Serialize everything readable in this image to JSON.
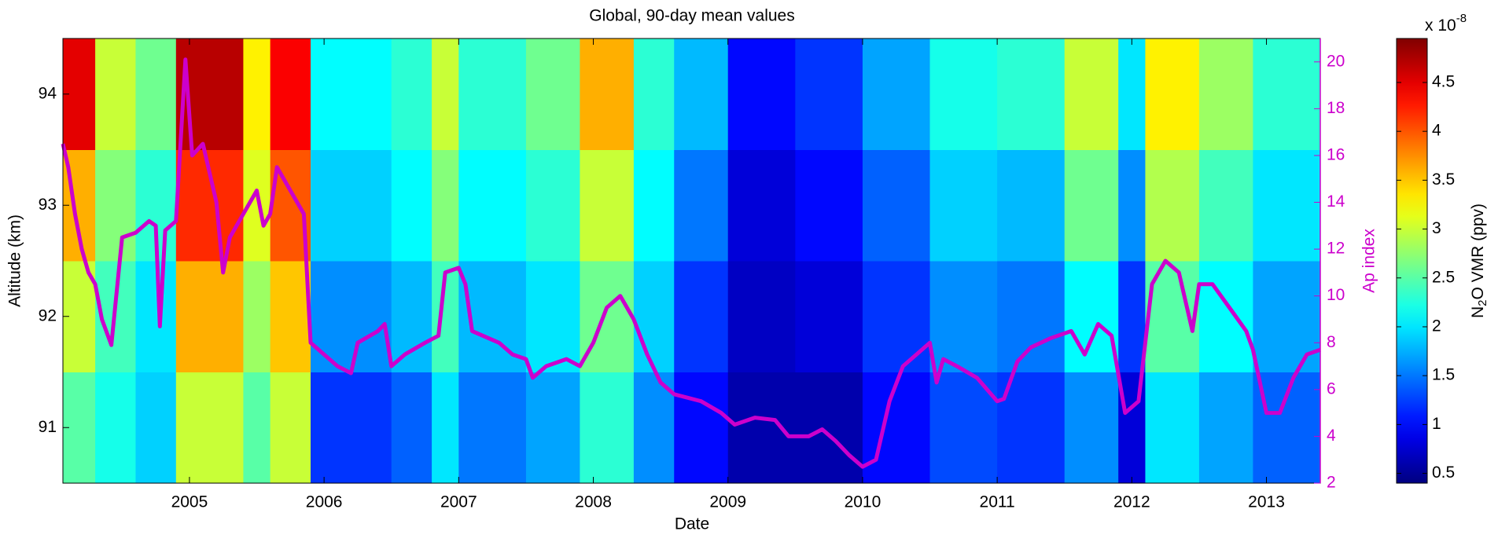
{
  "chart_data": {
    "type": "heatmap",
    "title": "Global, 90-day mean values",
    "x_label": "Date",
    "y_label": "Altitude (km)",
    "y2_label": "Ap index",
    "colorbar_label": {
      "pre": "N",
      "sub": "2",
      "post": "O VMR (ppv)"
    },
    "colorbar_scale": {
      "base": "x 10",
      "exp": "-8"
    },
    "colormap": "jet",
    "xlim": [
      2004.06,
      2013.4
    ],
    "xticks": [
      2005,
      2006,
      2007,
      2008,
      2009,
      2010,
      2011,
      2012,
      2013
    ],
    "ylim": [
      90.5,
      94.5
    ],
    "yticks": [
      91,
      92,
      93,
      94
    ],
    "y2lim": [
      2,
      21
    ],
    "y2ticks": [
      2,
      4,
      6,
      8,
      10,
      12,
      14,
      16,
      18,
      20
    ],
    "clim": [
      0.4,
      4.95
    ],
    "cticks": [
      0.5,
      1,
      1.5,
      2,
      2.5,
      3,
      3.5,
      4,
      4.5
    ],
    "x_bins": [
      2004.06,
      2004.3,
      2004.6,
      2004.9,
      2005.4,
      2005.6,
      2005.9,
      2006.5,
      2006.8,
      2007.0,
      2007.5,
      2007.9,
      2008.3,
      2008.6,
      2009.0,
      2009.5,
      2010.0,
      2010.5,
      2011.0,
      2011.5,
      2011.9,
      2012.1,
      2012.5,
      2012.9,
      2013.4
    ],
    "y_bins": [
      90.5,
      91.5,
      92.5,
      93.5,
      94.5
    ],
    "values": [
      [
        2.5,
        2.2,
        1.9,
        3.0,
        2.5,
        3.0,
        1.2,
        1.4,
        2.0,
        1.5,
        1.7,
        2.3,
        1.6,
        1.0,
        0.6,
        0.6,
        1.0,
        1.3,
        1.2,
        1.6,
        0.8,
        2.0,
        1.7,
        1.4
      ],
      [
        3.0,
        2.4,
        2.0,
        3.6,
        2.8,
        3.5,
        1.6,
        1.8,
        2.4,
        1.8,
        2.0,
        2.6,
        1.9,
        1.2,
        0.7,
        0.8,
        1.2,
        1.6,
        1.5,
        2.1,
        1.2,
        2.5,
        2.1,
        1.7
      ],
      [
        3.6,
        2.7,
        2.3,
        4.2,
        3.1,
        4.0,
        1.9,
        2.1,
        2.7,
        2.1,
        2.3,
        3.0,
        2.1,
        1.5,
        0.8,
        1.0,
        1.4,
        1.9,
        1.8,
        2.6,
        1.6,
        2.9,
        2.4,
        2.0
      ],
      [
        4.5,
        3.0,
        2.6,
        4.7,
        3.3,
        4.4,
        2.1,
        2.3,
        3.0,
        2.3,
        2.6,
        3.6,
        2.3,
        1.8,
        1.0,
        1.2,
        1.7,
        2.2,
        2.3,
        3.0,
        2.0,
        3.3,
        2.8,
        2.3
      ]
    ],
    "series": [
      {
        "type": "line",
        "axis": "y2",
        "color": "#cc00cc",
        "x": [
          2004.06,
          2004.1,
          2004.15,
          2004.2,
          2004.25,
          2004.3,
          2004.35,
          2004.42,
          2004.5,
          2004.6,
          2004.7,
          2004.75,
          2004.78,
          2004.82,
          2004.9,
          2004.97,
          2005.02,
          2005.1,
          2005.2,
          2005.25,
          2005.3,
          2005.4,
          2005.5,
          2005.55,
          2005.6,
          2005.65,
          2005.75,
          2005.85,
          2005.9,
          2006.0,
          2006.1,
          2006.2,
          2006.25,
          2006.4,
          2006.45,
          2006.5,
          2006.6,
          2006.75,
          2006.85,
          2006.9,
          2007.0,
          2007.05,
          2007.1,
          2007.3,
          2007.4,
          2007.5,
          2007.55,
          2007.65,
          2007.8,
          2007.9,
          2008.0,
          2008.1,
          2008.2,
          2008.3,
          2008.4,
          2008.5,
          2008.6,
          2008.8,
          2008.95,
          2009.05,
          2009.2,
          2009.35,
          2009.45,
          2009.6,
          2009.7,
          2009.8,
          2009.9,
          2010.0,
          2010.1,
          2010.2,
          2010.3,
          2010.4,
          2010.5,
          2010.55,
          2010.6,
          2010.7,
          2010.85,
          2011.0,
          2011.05,
          2011.15,
          2011.25,
          2011.4,
          2011.55,
          2011.65,
          2011.75,
          2011.85,
          2011.95,
          2012.05,
          2012.15,
          2012.25,
          2012.35,
          2012.45,
          2012.5,
          2012.6,
          2012.75,
          2012.85,
          2012.9,
          2013.0,
          2013.1,
          2013.2,
          2013.3,
          2013.4
        ],
        "values": [
          16.5,
          15.5,
          13.5,
          12,
          11,
          10.5,
          9,
          7.9,
          12.5,
          12.7,
          13.2,
          13,
          8.7,
          12.8,
          13.2,
          20.1,
          16,
          16.5,
          14,
          11,
          12.5,
          13.5,
          14.5,
          13,
          13.5,
          15.5,
          14.5,
          13.5,
          8,
          7.5,
          7,
          6.7,
          8,
          8.5,
          8.8,
          7,
          7.5,
          8,
          8.3,
          11,
          11.2,
          10.5,
          8.5,
          8,
          7.5,
          7.3,
          6.5,
          7,
          7.3,
          7,
          8,
          9.5,
          10,
          9,
          7.5,
          6.3,
          5.8,
          5.5,
          5,
          4.5,
          4.8,
          4.7,
          4,
          4,
          4.3,
          3.8,
          3.2,
          2.7,
          3,
          5.5,
          7,
          7.5,
          8,
          6.3,
          7.3,
          7,
          6.5,
          5.5,
          5.6,
          7.2,
          7.8,
          8.2,
          8.5,
          7.5,
          8.8,
          8.3,
          5,
          5.5,
          10.5,
          11.5,
          11,
          8.5,
          10.5,
          10.5,
          9.3,
          8.5,
          7.7,
          5,
          5,
          6.5,
          7.5,
          7.7
        ]
      }
    ]
  }
}
